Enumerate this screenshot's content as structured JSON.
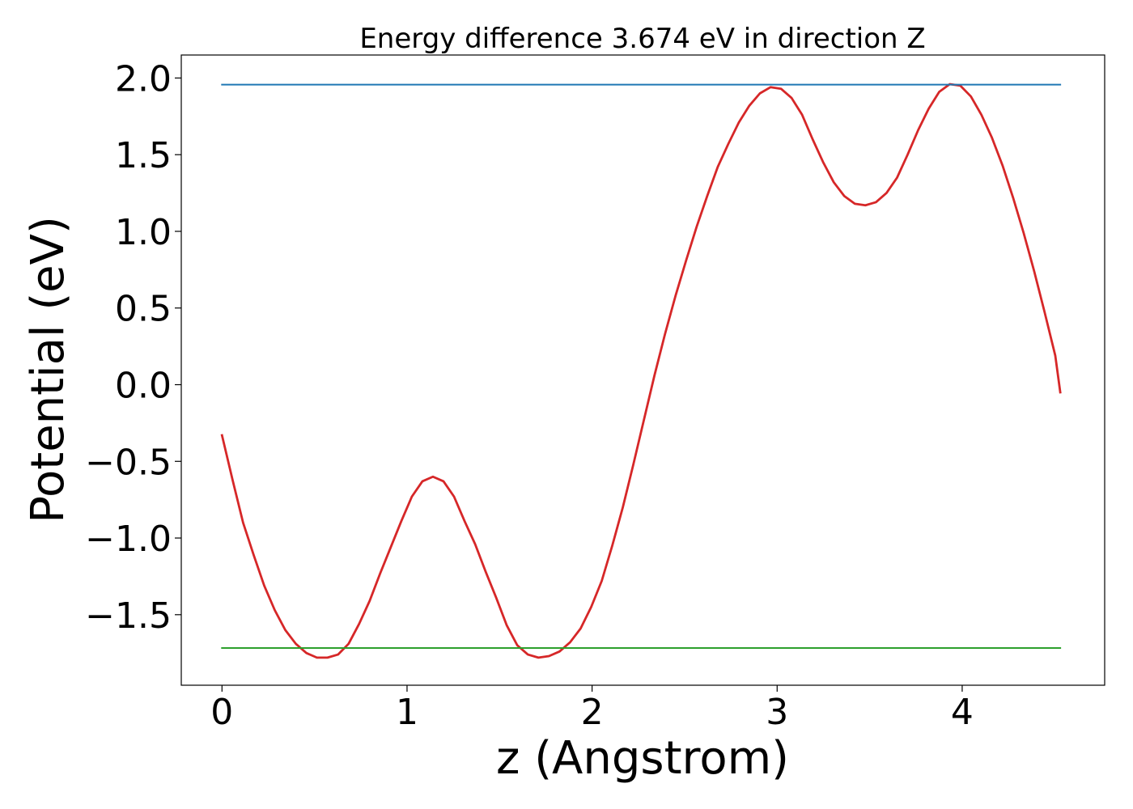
{
  "chart_data": {
    "type": "line",
    "title": "Energy difference 3.674 eV in direction Z",
    "xlabel": "z (Angstrom)",
    "ylabel": "Potential (eV)",
    "xlim": [
      -0.22,
      4.77
    ],
    "ylim": [
      -1.96,
      2.15
    ],
    "xticks": [
      0,
      1,
      2,
      3,
      4
    ],
    "xtick_labels": [
      "0",
      "1",
      "2",
      "3",
      "4"
    ],
    "yticks": [
      -1.5,
      -1.0,
      -0.5,
      0.0,
      0.5,
      1.0,
      1.5,
      2.0
    ],
    "ytick_labels": [
      "−1.5",
      "−1.0",
      "−0.5",
      "0.0",
      "0.5",
      "1.0",
      "1.5",
      "2.0"
    ],
    "grid": false,
    "series": [
      {
        "role": "potential",
        "color": "#d62728",
        "x": [
          0.0,
          0.057,
          0.114,
          0.171,
          0.228,
          0.285,
          0.342,
          0.399,
          0.456,
          0.513,
          0.57,
          0.627,
          0.684,
          0.741,
          0.798,
          0.855,
          0.912,
          0.969,
          1.026,
          1.083,
          1.14,
          1.197,
          1.254,
          1.311,
          1.368,
          1.425,
          1.482,
          1.539,
          1.596,
          1.653,
          1.71,
          1.767,
          1.824,
          1.881,
          1.938,
          1.995,
          2.052,
          2.109,
          2.166,
          2.223,
          2.28,
          2.337,
          2.394,
          2.451,
          2.508,
          2.565,
          2.622,
          2.679,
          2.736,
          2.793,
          2.85,
          2.907,
          2.964,
          3.021,
          3.078,
          3.135,
          3.192,
          3.249,
          3.306,
          3.363,
          3.42,
          3.477,
          3.534,
          3.591,
          3.648,
          3.705,
          3.762,
          3.819,
          3.876,
          3.933,
          3.99,
          4.047,
          4.104,
          4.161,
          4.218,
          4.275,
          4.332,
          4.389,
          4.446,
          4.503,
          4.53
        ],
        "y": [
          -0.33,
          -0.62,
          -0.9,
          -1.11,
          -1.31,
          -1.47,
          -1.6,
          -1.69,
          -1.75,
          -1.78,
          -1.78,
          -1.76,
          -1.69,
          -1.56,
          -1.41,
          -1.23,
          -1.06,
          -0.89,
          -0.73,
          -0.63,
          -0.6,
          -0.63,
          -0.73,
          -0.89,
          -1.04,
          -1.22,
          -1.39,
          -1.57,
          -1.7,
          -1.76,
          -1.78,
          -1.77,
          -1.74,
          -1.68,
          -1.59,
          -1.45,
          -1.28,
          -1.05,
          -0.8,
          -0.52,
          -0.23,
          0.06,
          0.33,
          0.58,
          0.81,
          1.03,
          1.23,
          1.42,
          1.57,
          1.71,
          1.82,
          1.9,
          1.94,
          1.93,
          1.87,
          1.76,
          1.6,
          1.45,
          1.32,
          1.23,
          1.18,
          1.17,
          1.19,
          1.25,
          1.35,
          1.5,
          1.66,
          1.8,
          1.91,
          1.96,
          1.95,
          1.88,
          1.76,
          1.61,
          1.43,
          1.22,
          0.99,
          0.74,
          0.47,
          0.19,
          -0.05
        ]
      },
      {
        "role": "maximum",
        "color": "#1f77b4",
        "x": [
          0.0,
          4.53
        ],
        "y": [
          1.957,
          1.957
        ]
      },
      {
        "role": "minimum",
        "color": "#2ca02c",
        "x": [
          0.0,
          4.53
        ],
        "y": [
          -1.717,
          -1.717
        ]
      }
    ]
  }
}
